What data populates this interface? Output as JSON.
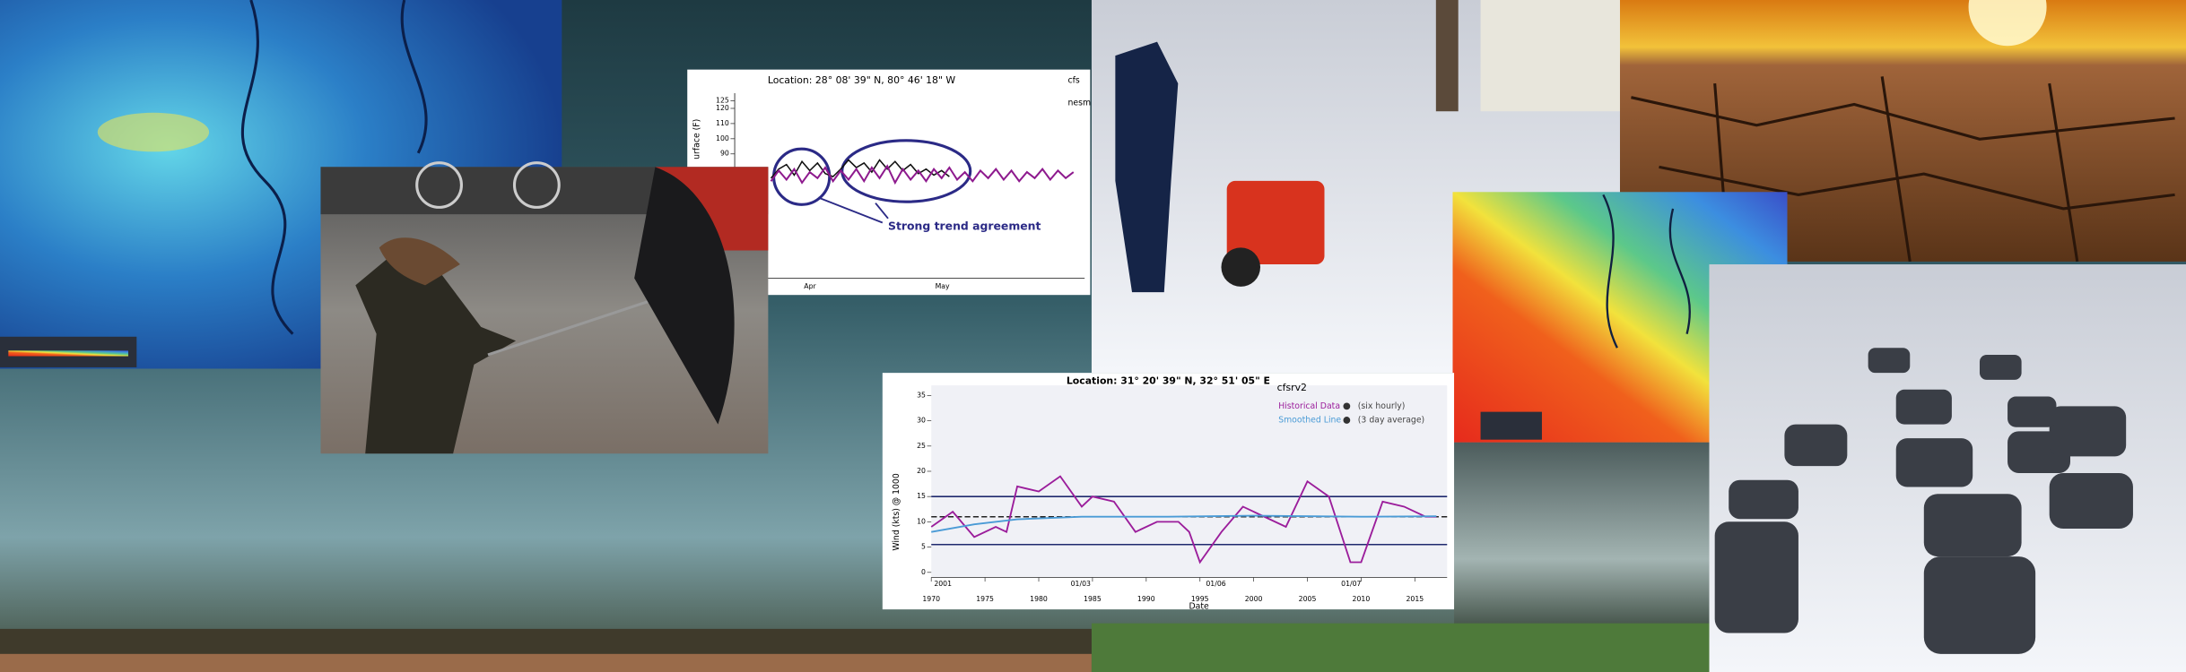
{
  "panels": {
    "chart1": {
      "title": "Location: 28° 08' 39\" N, 80° 46' 18\" W",
      "y_label": "urface (F)",
      "annotation": "Strong trend agreement",
      "categories": [
        "Apr",
        "May"
      ],
      "ylim": [
        8,
        130
      ],
      "yticks": [
        90,
        100,
        110,
        120,
        125
      ],
      "series": [
        {
          "name": "cfs",
          "color": "#111111",
          "values": [
            74,
            80,
            83,
            76,
            85,
            79,
            84,
            77,
            75,
            80,
            86,
            81,
            84,
            78,
            86,
            80,
            85,
            79,
            83,
            77,
            80,
            76,
            79,
            75
          ]
        },
        {
          "name": "nesm",
          "color": "#8e1a8e",
          "values": [
            72,
            79,
            73,
            80,
            71,
            78,
            74,
            81,
            72,
            79,
            73,
            80,
            72,
            81,
            74,
            82,
            71,
            80,
            73,
            79,
            72,
            80,
            74,
            81,
            73,
            78,
            72,
            79,
            74,
            80,
            73,
            79,
            72,
            78,
            74,
            80,
            73,
            79,
            74,
            78
          ]
        }
      ]
    },
    "chart2": {
      "title": "Location: 31° 20' 39\" N, 32° 51' 05\" E",
      "model": "cfsrv2",
      "y_label": "Wind (kts) @ 1000",
      "x_label": "Date",
      "period_labels": [
        "2001",
        "01/03",
        "01/06",
        "01/07"
      ],
      "xlim": [
        1970,
        2018
      ],
      "ylim": [
        -1,
        37
      ],
      "xticks": [
        1970,
        1975,
        1980,
        1985,
        1990,
        1995,
        2000,
        2005,
        2010,
        2015
      ],
      "yticks": [
        0,
        5,
        10,
        15,
        20,
        25,
        30,
        35
      ],
      "bounds": [
        15,
        5.5
      ],
      "mean": 11,
      "series": [
        {
          "name": "Historical Data",
          "note": "(six hourly)",
          "color": "#9b1d9b",
          "x": [
            1970,
            1972,
            1974,
            1976,
            1977,
            1978,
            1980,
            1982,
            1984,
            1985,
            1987,
            1989,
            1991,
            1993,
            1994,
            1995,
            1997,
            1999,
            2001,
            2003,
            2005,
            2007,
            2009,
            2010,
            2012,
            2014,
            2016,
            2017
          ],
          "values": [
            9,
            12,
            7,
            9,
            8,
            17,
            16,
            19,
            13,
            15,
            14,
            8,
            10,
            10,
            8,
            2,
            8,
            13,
            11,
            9,
            18,
            15,
            2,
            2,
            14,
            13,
            11,
            11
          ]
        },
        {
          "name": "Smoothed Line",
          "note": "(3 day average)",
          "color": "#4a9bd6",
          "x": [
            1970,
            1974,
            1978,
            1984,
            1992,
            2000,
            2010,
            2017
          ],
          "values": [
            8,
            9.5,
            10.5,
            11,
            11,
            11.2,
            11,
            11.1
          ]
        }
      ]
    }
  }
}
